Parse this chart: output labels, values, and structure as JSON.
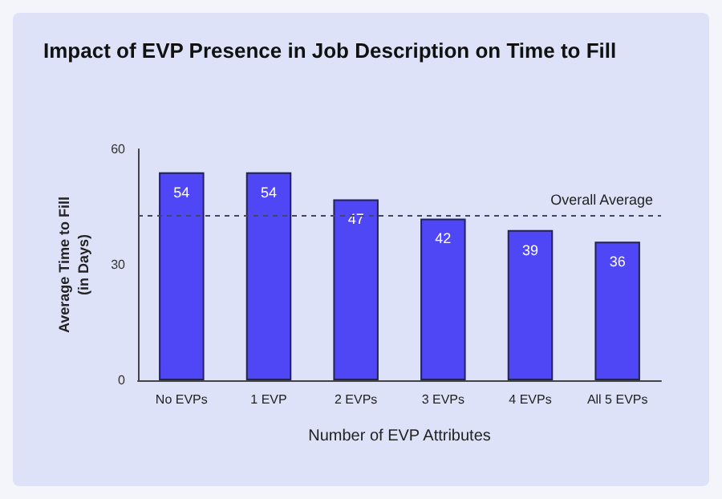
{
  "chart_data": {
    "type": "bar",
    "title": "Impact of EVP Presence in Job Description on Time to Fill",
    "xlabel": "Number of EVP Attributes",
    "ylabel": "Average Time to Fill\n(in Days)",
    "categories": [
      "No EVPs",
      "1 EVP",
      "2 EVPs",
      "3 EVPs",
      "4 EVPs",
      "All 5 EVPs"
    ],
    "values": [
      54,
      54,
      47,
      42,
      39,
      36
    ],
    "color": "#4f46f5",
    "data_labels": true,
    "ylim": [
      0,
      60
    ],
    "yticks": [
      0,
      30,
      60
    ],
    "grid": false,
    "ref_lines": [
      {
        "axis": "y",
        "value": 43,
        "label": "Overall Average",
        "line_style": "dotted",
        "color": "#444466"
      }
    ]
  }
}
